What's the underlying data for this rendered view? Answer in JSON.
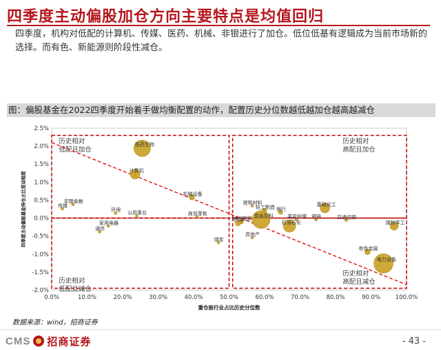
{
  "slide": {
    "title": "四季度主动偏股加仓方向主要特点是均值回归",
    "intro": "四季度，机构对低配的计算机、传媒、医药、机械、非银进行了加仓。低位低基有逻辑成为当前市场新的选择。而有色、新能源则阶段性减仓。",
    "figure_title": "图：偏股基金在2022四季度开始着手做均衡配置的动作，配置历史分位数越低越加仓越高越减仓",
    "source": "数据来源：wind，招商证券",
    "page_number": "- 43 -",
    "logo_text": "CMS",
    "logo_cn": "招商证券"
  },
  "chart_data": {
    "type": "scatter",
    "xlabel": "重仓股行业占比历史分位数",
    "ylabel": "四季度主动偏股基金持仓占比变动程度",
    "xlim": [
      0,
      1
    ],
    "ylim": [
      -0.02,
      0.025
    ],
    "x_ticks": [
      "0.0%",
      "10.0%",
      "20.0%",
      "30.0%",
      "40.0%",
      "50.0%",
      "60.0%",
      "70.0%",
      "80.0%",
      "90.0%",
      "100.0%"
    ],
    "y_ticks": [
      "-2.0%",
      "-1.5%",
      "-1.0%",
      "-0.5%",
      "0.0%",
      "0.5%",
      "1.0%",
      "1.5%",
      "2.0%",
      "2.5%"
    ],
    "quadrant_labels": [
      {
        "text": "历史相对\n低配且加仓",
        "pos": "top-left"
      },
      {
        "text": "历史相对\n高配且加仓",
        "pos": "top-right"
      },
      {
        "text": "历史相对\n低配且减仓",
        "pos": "bottom-left"
      },
      {
        "text": "历史相对\n高配且减仓",
        "pos": "bottom-right"
      }
    ],
    "trendline": {
      "x": [
        0.0,
        1.0
      ],
      "y": [
        0.021,
        -0.0185
      ]
    },
    "points": [
      {
        "name": "医药生物",
        "x": 0.255,
        "y": 0.0194,
        "size": 12
      },
      {
        "name": "计算机",
        "x": 0.235,
        "y": 0.0122,
        "size": 7
      },
      {
        "name": "机械设备",
        "x": 0.395,
        "y": 0.0058,
        "size": 4
      },
      {
        "name": "非银金融",
        "x": 0.06,
        "y": 0.0038,
        "size": 2
      },
      {
        "name": "传媒",
        "x": 0.03,
        "y": 0.0026,
        "size": 2
      },
      {
        "name": "环保",
        "x": 0.18,
        "y": 0.0014,
        "size": 2
      },
      {
        "name": "公用事业",
        "x": 0.24,
        "y": 0.0006,
        "size": 2
      },
      {
        "name": "商贸零售",
        "x": 0.41,
        "y": 0.0004,
        "size": 2
      },
      {
        "name": "家用电器",
        "x": 0.16,
        "y": -0.0022,
        "size": 2
      },
      {
        "name": "通信",
        "x": 0.135,
        "y": -0.0038,
        "size": 2
      },
      {
        "name": "煤炭",
        "x": 0.47,
        "y": -0.0068,
        "size": 2
      },
      {
        "name": "建筑材料",
        "x": 0.565,
        "y": 0.0034,
        "size": 2
      },
      {
        "name": "轻工制造",
        "x": 0.6,
        "y": 0.0022,
        "size": 3
      },
      {
        "name": "银行",
        "x": 0.645,
        "y": 0.0016,
        "size": 3
      },
      {
        "name": "基础化工",
        "x": 0.77,
        "y": 0.0028,
        "size": 7
      },
      {
        "name": "国防军工",
        "x": 0.965,
        "y": -0.0022,
        "size": 6
      },
      {
        "name": "纺织服装",
        "x": 0.535,
        "y": -0.001,
        "size": 3
      },
      {
        "name": "食品饮料",
        "x": 0.59,
        "y": -0.0004,
        "size": 13
      },
      {
        "name": "汽车",
        "x": 0.525,
        "y": -0.0014,
        "size": 4
      },
      {
        "name": "美容护理",
        "x": 0.69,
        "y": -0.0004,
        "size": 2
      },
      {
        "name": "钢铁",
        "x": 0.745,
        "y": -0.0004,
        "size": 2
      },
      {
        "name": "交通运输",
        "x": 0.83,
        "y": -0.0006,
        "size": 2
      },
      {
        "name": "石油石化",
        "x": 0.67,
        "y": -0.0022,
        "size": 9
      },
      {
        "name": "房地产",
        "x": 0.565,
        "y": -0.0054,
        "size": 2
      },
      {
        "name": "电力设备",
        "x": 0.935,
        "y": -0.0126,
        "size": 14
      },
      {
        "name": "有色金属",
        "x": 0.89,
        "y": -0.0094,
        "size": 4
      }
    ],
    "colors": {
      "bubble": "#c9a227",
      "bubble_edge": "#a98514",
      "quadrant": "#c00000",
      "trend": "#e02020"
    }
  }
}
